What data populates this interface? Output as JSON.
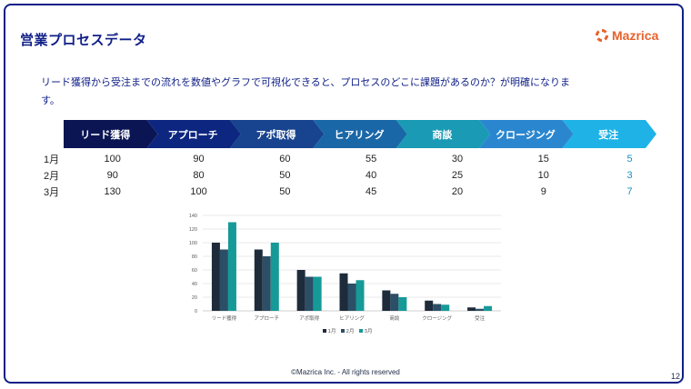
{
  "slide": {
    "title": "営業プロセスデータ",
    "brand": "Mazrica",
    "intro": "リード獲得から受注までの流れを数値やグラフで可視化できると、プロセスのどこに課題があるのか？が明確になります。",
    "footer": "©Mazrica Inc. - All rights reserved",
    "page_number": "12"
  },
  "stages": [
    {
      "label": "リード獲得",
      "color": "#0b1554"
    },
    {
      "label": "アプローチ",
      "color": "#0d2780"
    },
    {
      "label": "アポ取得",
      "color": "#17438f"
    },
    {
      "label": "ヒアリング",
      "color": "#1a67a7"
    },
    {
      "label": "商談",
      "color": "#1a9ab4"
    },
    {
      "label": "クロージング",
      "color": "#2a87cf"
    },
    {
      "label": "受注",
      "color": "#1fb2e6"
    }
  ],
  "table": {
    "rows": [
      {
        "month": "1月",
        "values": [
          "100",
          "90",
          "60",
          "55",
          "30",
          "15",
          "5"
        ]
      },
      {
        "month": "2月",
        "values": [
          "90",
          "80",
          "50",
          "40",
          "25",
          "10",
          "3"
        ]
      },
      {
        "month": "3月",
        "values": [
          "130",
          "100",
          "50",
          "45",
          "20",
          "9",
          "7"
        ]
      }
    ],
    "value_colors": [
      "#222222",
      "#222222",
      "#222222",
      "#222222",
      "#222222",
      "#222222",
      "#1a8fc4"
    ]
  },
  "chart_data": {
    "type": "bar",
    "categories": [
      "リード獲得",
      "アプローチ",
      "アポ取得",
      "ヒアリング",
      "商談",
      "クロージング",
      "受注"
    ],
    "series": [
      {
        "name": "1月",
        "values": [
          100,
          90,
          60,
          55,
          30,
          15,
          5
        ],
        "color": "#1e2b3a"
      },
      {
        "name": "2月",
        "values": [
          90,
          80,
          50,
          40,
          25,
          10,
          3
        ],
        "color": "#2b4f66"
      },
      {
        "name": "3月",
        "values": [
          130,
          100,
          50,
          45,
          20,
          9,
          7
        ],
        "color": "#159a98"
      }
    ],
    "y_ticks": [
      "0",
      "20",
      "40",
      "60",
      "80",
      "100",
      "120",
      "140"
    ],
    "ylim": [
      0,
      140
    ],
    "grid": true,
    "legend_position": "bottom"
  }
}
